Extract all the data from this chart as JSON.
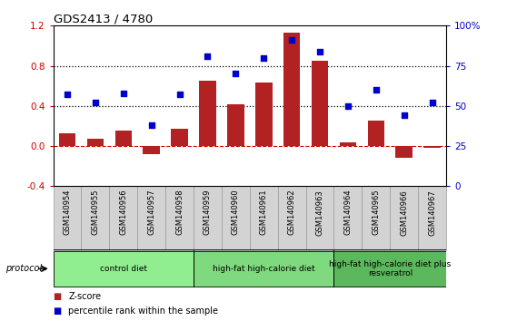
{
  "title": "GDS2413 / 4780",
  "samples": [
    "GSM140954",
    "GSM140955",
    "GSM140956",
    "GSM140957",
    "GSM140958",
    "GSM140959",
    "GSM140960",
    "GSM140961",
    "GSM140962",
    "GSM140963",
    "GSM140964",
    "GSM140965",
    "GSM140966",
    "GSM140967"
  ],
  "z_scores": [
    0.13,
    0.07,
    0.15,
    -0.08,
    0.17,
    0.65,
    0.42,
    0.63,
    1.13,
    0.85,
    0.04,
    0.25,
    -0.12,
    -0.02
  ],
  "pct_ranks": [
    57,
    52,
    58,
    38,
    57,
    81,
    70,
    80,
    91,
    84,
    50,
    60,
    44,
    52
  ],
  "bar_color": "#B22222",
  "dot_color": "#0000CD",
  "ylim_left": [
    -0.4,
    1.2
  ],
  "ylim_right": [
    0,
    100
  ],
  "yticks_left": [
    -0.4,
    0.0,
    0.4,
    0.8,
    1.2
  ],
  "yticks_right": [
    0,
    25,
    50,
    75,
    100
  ],
  "ytick_labels_right": [
    "0",
    "25",
    "50",
    "75",
    "100%"
  ],
  "hlines": [
    0.4,
    0.8
  ],
  "groups": [
    {
      "label": "control diet",
      "start": 0,
      "end": 5,
      "color": "#90EE90"
    },
    {
      "label": "high-fat high-calorie diet",
      "start": 5,
      "end": 10,
      "color": "#7FD97F"
    },
    {
      "label": "high-fat high-calorie diet plus\nresveratrol",
      "start": 10,
      "end": 14,
      "color": "#5CB85C"
    }
  ],
  "group_dividers": [
    5,
    10
  ],
  "protocol_label": "protocol",
  "legend_items": [
    {
      "color": "#B22222",
      "label": "Z-score"
    },
    {
      "color": "#0000CD",
      "label": "percentile rank within the sample"
    }
  ],
  "background_color": "#FFFFFF",
  "zero_line_color": "#CC0000",
  "sample_box_color": "#D3D3D3",
  "sample_box_edge": "#999999"
}
